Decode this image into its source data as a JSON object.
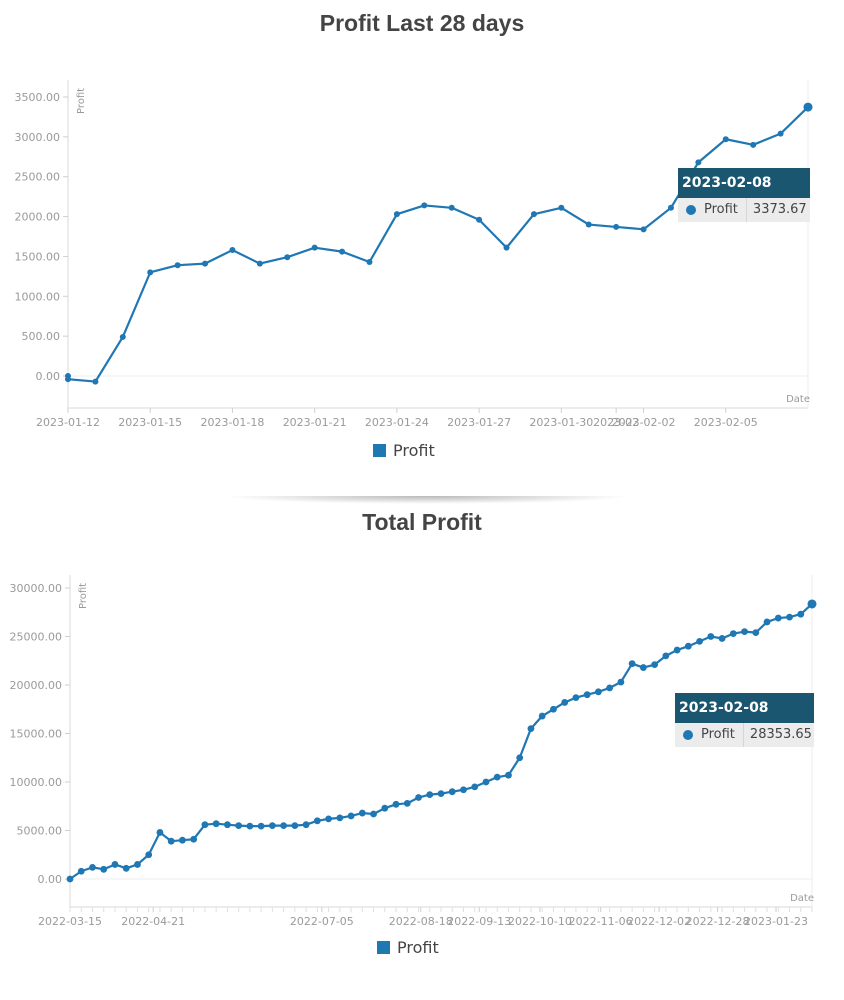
{
  "chart_data": [
    {
      "type": "line",
      "title": "Profit Last 28 days",
      "ylabel": "Profit",
      "xlabel": "Date",
      "ylim": [
        -400,
        3700
      ],
      "yticks": [
        "0.00",
        "500.00",
        "1000.00",
        "1500.00",
        "2000.00",
        "2500.00",
        "3000.00",
        "3500.00"
      ],
      "xticks": [
        "2023-01-12",
        "2023-01-15",
        "2023-01-18",
        "2023-01-21",
        "2023-01-24",
        "2023-01-27",
        "2023-01-30",
        "2023-02-02",
        "2023-02-05",
        "2023-02"
      ],
      "x": [
        "2023-01-12",
        "2023-01-12",
        "2023-01-13",
        "2023-01-14",
        "2023-01-15",
        "2023-01-16",
        "2023-01-17",
        "2023-01-18",
        "2023-01-19",
        "2023-01-20",
        "2023-01-21",
        "2023-01-22",
        "2023-01-23",
        "2023-01-24",
        "2023-01-25",
        "2023-01-26",
        "2023-01-27",
        "2023-01-28",
        "2023-01-29",
        "2023-01-30",
        "2023-01-31",
        "2023-02-01",
        "2023-02-02",
        "2023-02-03",
        "2023-02-04",
        "2023-02-05",
        "2023-02-06",
        "2023-02-07",
        "2023-02-08"
      ],
      "series": [
        {
          "name": "Profit",
          "values": [
            0,
            -40,
            -70,
            490,
            1300,
            1390,
            1410,
            1580,
            1410,
            1490,
            1610,
            1560,
            1430,
            2030,
            2140,
            2110,
            1960,
            1610,
            2030,
            2110,
            1900,
            1870,
            1840,
            2110,
            2680,
            2970,
            2900,
            3040,
            3373.67
          ]
        }
      ],
      "legend": "bottom-center",
      "grid": false,
      "tooltip": {
        "date": "2023-02-08",
        "series": "Profit",
        "value": "3373.67"
      }
    },
    {
      "type": "line",
      "title": "Total Profit",
      "ylabel": "Profit",
      "xlabel": "Date",
      "ylim": [
        -2800,
        30000
      ],
      "yticks": [
        "0.00",
        "5000.00",
        "10000.00",
        "15000.00",
        "20000.00",
        "25000.00",
        "30000.00"
      ],
      "xticks": [
        "2022-03-15",
        "2022-04-21",
        "2022-07-05",
        "2022-08-18",
        "2022-09-13",
        "2022-10-10",
        "2022-11-06",
        "2022-12-02",
        "2022-12-28",
        "2023-01-23"
      ],
      "x": [
        "2022-03-15",
        "2022-03-20",
        "2022-03-25",
        "2022-03-30",
        "2022-04-04",
        "2022-04-09",
        "2022-04-14",
        "2022-04-19",
        "2022-04-24",
        "2022-04-29",
        "2022-05-04",
        "2022-05-09",
        "2022-05-14",
        "2022-05-19",
        "2022-05-24",
        "2022-05-29",
        "2022-06-03",
        "2022-06-08",
        "2022-06-13",
        "2022-06-18",
        "2022-06-23",
        "2022-06-28",
        "2022-07-03",
        "2022-07-08",
        "2022-07-13",
        "2022-07-18",
        "2022-07-23",
        "2022-07-28",
        "2022-08-02",
        "2022-08-07",
        "2022-08-12",
        "2022-08-17",
        "2022-08-22",
        "2022-08-27",
        "2022-09-01",
        "2022-09-06",
        "2022-09-11",
        "2022-09-16",
        "2022-09-21",
        "2022-09-26",
        "2022-10-01",
        "2022-10-06",
        "2022-10-11",
        "2022-10-16",
        "2022-10-21",
        "2022-10-26",
        "2022-10-31",
        "2022-11-05",
        "2022-11-10",
        "2022-11-15",
        "2022-11-20",
        "2022-11-25",
        "2022-11-30",
        "2022-12-05",
        "2022-12-10",
        "2022-12-15",
        "2022-12-20",
        "2022-12-25",
        "2022-12-30",
        "2023-01-04",
        "2023-01-09",
        "2023-01-14",
        "2023-01-19",
        "2023-01-24",
        "2023-01-29",
        "2023-02-03",
        "2023-02-08"
      ],
      "series": [
        {
          "name": "Profit",
          "values": [
            0,
            800,
            1200,
            1000,
            1500,
            1100,
            1500,
            2500,
            4800,
            3900,
            4000,
            4100,
            5600,
            5700,
            5600,
            5500,
            5450,
            5450,
            5500,
            5500,
            5500,
            5600,
            6000,
            6200,
            6300,
            6500,
            6800,
            6700,
            7300,
            7700,
            7800,
            8400,
            8700,
            8800,
            9000,
            9200,
            9500,
            10000,
            10500,
            10700,
            12500,
            15500,
            16800,
            17500,
            18200,
            18700,
            19000,
            19300,
            19700,
            20300,
            22200,
            21800,
            22100,
            23000,
            23600,
            24000,
            24500,
            25000,
            24800,
            25300,
            25500,
            25400,
            26500,
            26900,
            27000,
            27300,
            28353.65
          ]
        }
      ],
      "legend": "bottom-center",
      "grid": false,
      "tooltip": {
        "date": "2023-02-08",
        "series": "Profit",
        "value": "28353.65"
      }
    }
  ],
  "colors": {
    "series": "#1f77b4",
    "tooltip_header": "#1b5670",
    "tooltip_row": "#ececec",
    "axis_text": "#9a9a9a",
    "title": "#444444"
  }
}
